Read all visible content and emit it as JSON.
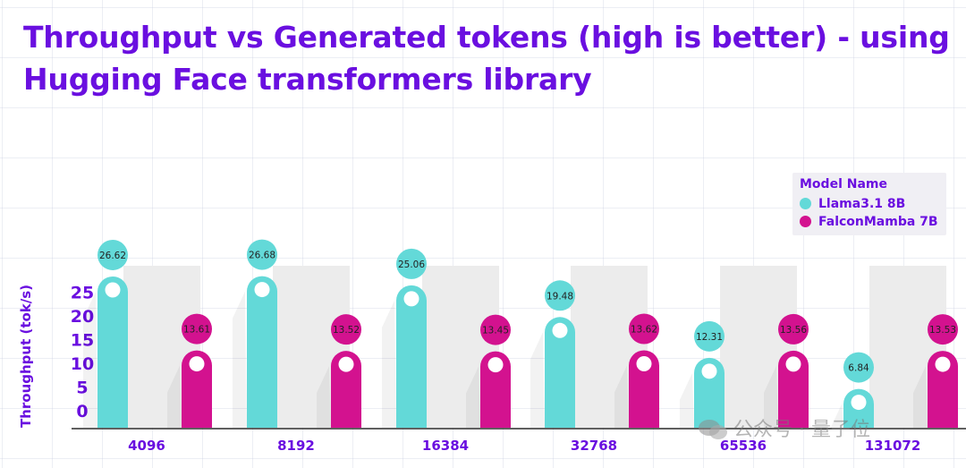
{
  "title_line1": "Throughput vs Generated tokens (high is better) - using",
  "title_line2": "Hugging Face transformers library",
  "legend": {
    "title": "Model Name",
    "items": [
      {
        "label": "Llama3.1 8B",
        "color": "#63d9d8"
      },
      {
        "label": "FalconMamba 7B",
        "color": "#d3128f"
      }
    ]
  },
  "watermark": "公众号 · 量子位",
  "chart_data": {
    "type": "bar",
    "title": "Throughput vs Generated tokens (high is better) - using Hugging Face transformers library",
    "xlabel": "",
    "ylabel": "Throughput (tok/s)",
    "ylim": [
      0,
      25
    ],
    "yticks": [
      0,
      5,
      10,
      15,
      20,
      25
    ],
    "categories": [
      "4096",
      "8192",
      "16384",
      "32768",
      "65536",
      "131072"
    ],
    "series": [
      {
        "name": "Llama3.1 8B",
        "color": "#63d9d8",
        "values": [
          26.62,
          26.68,
          25.06,
          19.48,
          12.31,
          6.84
        ]
      },
      {
        "name": "FalconMamba 7B",
        "color": "#d3128f",
        "values": [
          13.61,
          13.52,
          13.45,
          13.62,
          13.56,
          13.53
        ]
      }
    ],
    "legend_position": "top-right"
  }
}
